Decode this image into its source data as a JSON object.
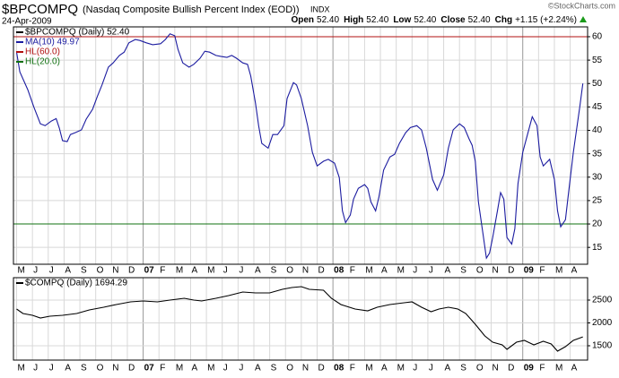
{
  "header": {
    "symbol": "$BPCOMPQ",
    "name": "(Nasdaq Composite Bullish Percent Index (EOD))",
    "exchange": "INDX",
    "date": "24-Apr-2009",
    "copyright": "©StockCharts.com",
    "quote": [
      {
        "label": "Open",
        "value": "52.40"
      },
      {
        "label": "High",
        "value": "52.40"
      },
      {
        "label": "Low",
        "value": "52.40"
      },
      {
        "label": "Close",
        "value": "52.40"
      },
      {
        "label": "Chg",
        "value": "+1.15 (+2.24%)"
      }
    ]
  },
  "chart_data": [
    {
      "type": "line",
      "price_label": "$BPCOMPQ (Daily) 52.40",
      "xlim": [
        -0.2,
        36.1
      ],
      "ylim": [
        11.4,
        62.1
      ],
      "yticks": [
        15,
        20,
        25,
        30,
        35,
        40,
        45,
        50,
        55,
        60
      ],
      "grid": true,
      "xticks": [
        {
          "value": 0,
          "label": "M"
        },
        {
          "value": 1,
          "label": "J"
        },
        {
          "value": 2,
          "label": "J"
        },
        {
          "value": 3,
          "label": "A"
        },
        {
          "value": 4,
          "label": "S"
        },
        {
          "value": 5,
          "label": "O"
        },
        {
          "value": 6,
          "label": "N"
        },
        {
          "value": 7,
          "label": "D"
        },
        {
          "value": 8,
          "label": "07"
        },
        {
          "value": 9,
          "label": "F"
        },
        {
          "value": 10,
          "label": "M"
        },
        {
          "value": 11,
          "label": "A"
        },
        {
          "value": 12,
          "label": "M"
        },
        {
          "value": 13,
          "label": "J"
        },
        {
          "value": 14,
          "label": "J"
        },
        {
          "value": 15,
          "label": "A"
        },
        {
          "value": 16,
          "label": "S"
        },
        {
          "value": 17,
          "label": "O"
        },
        {
          "value": 18,
          "label": "N"
        },
        {
          "value": 19,
          "label": "D"
        },
        {
          "value": 20,
          "label": "08"
        },
        {
          "value": 21,
          "label": "F"
        },
        {
          "value": 22,
          "label": "M"
        },
        {
          "value": 23,
          "label": "A"
        },
        {
          "value": 24,
          "label": "M"
        },
        {
          "value": 25,
          "label": "J"
        },
        {
          "value": 26,
          "label": "J"
        },
        {
          "value": 27,
          "label": "A"
        },
        {
          "value": 28,
          "label": "S"
        },
        {
          "value": 29,
          "label": "O"
        },
        {
          "value": 30,
          "label": "N"
        },
        {
          "value": 31,
          "label": "D"
        },
        {
          "value": 32,
          "label": "09"
        },
        {
          "value": 33,
          "label": "F"
        },
        {
          "value": 34,
          "label": "M"
        },
        {
          "value": 35,
          "label": "A"
        }
      ],
      "hlines": [
        {
          "name": "HL(60.0)",
          "value": 60,
          "color": "#b01010"
        },
        {
          "name": "HL(20.0)",
          "value": 20,
          "color": "#107010"
        }
      ],
      "series": [
        {
          "name": "MA(10) 49.97",
          "color": "#1c1ca0",
          "x": [
            0.0,
            0.2,
            0.7,
            1.1,
            1.5,
            1.8,
            2.2,
            2.5,
            2.7,
            2.9,
            3.2,
            3.4,
            3.7,
            4.1,
            4.4,
            4.8,
            5.1,
            5.4,
            5.8,
            6.1,
            6.5,
            6.8,
            7.1,
            7.5,
            7.8,
            8.2,
            8.6,
            9.1,
            9.4,
            9.7,
            10.0,
            10.2,
            10.5,
            10.9,
            11.2,
            11.6,
            11.9,
            12.2,
            12.6,
            12.9,
            13.3,
            13.6,
            13.9,
            14.3,
            14.6,
            14.8,
            15.1,
            15.3,
            15.5,
            15.9,
            16.2,
            16.5,
            16.9,
            17.1,
            17.5,
            17.7,
            18.0,
            18.4,
            18.7,
            19.0,
            19.4,
            19.7,
            20.1,
            20.4,
            20.6,
            20.8,
            21.1,
            21.3,
            21.6,
            22.0,
            22.2,
            22.4,
            22.7,
            22.9,
            23.2,
            23.6,
            23.9,
            24.2,
            24.6,
            24.9,
            25.3,
            25.6,
            25.9,
            26.3,
            26.6,
            27.0,
            27.3,
            27.6,
            28.0,
            28.3,
            28.6,
            28.8,
            29.0,
            29.2,
            29.5,
            29.7,
            29.9,
            30.1,
            30.4,
            30.6,
            30.8,
            31.0,
            31.3,
            31.5,
            31.7,
            32.0,
            32.3,
            32.6,
            32.9,
            33.1,
            33.3,
            33.7,
            34.0,
            34.2,
            34.4,
            34.7,
            34.9,
            35.2,
            35.6,
            35.8
          ],
          "values": [
            56.7,
            52.5,
            48.7,
            44.9,
            41.4,
            41.0,
            42.0,
            42.5,
            40.5,
            37.8,
            37.6,
            39.1,
            39.5,
            40.1,
            42.4,
            44.5,
            47.2,
            49.7,
            53.5,
            54.4,
            56.0,
            56.7,
            58.7,
            59.4,
            59.2,
            58.7,
            58.3,
            58.5,
            59.4,
            60.6,
            60.2,
            57.3,
            54.4,
            53.5,
            54.1,
            55.4,
            56.9,
            56.7,
            56.0,
            55.8,
            55.6,
            56.0,
            55.4,
            54.4,
            54.1,
            51.6,
            45.8,
            41.0,
            37.2,
            36.2,
            39.1,
            39.1,
            41.0,
            46.8,
            50.2,
            49.7,
            46.8,
            41.0,
            35.3,
            32.4,
            33.4,
            33.8,
            33.0,
            29.9,
            22.8,
            20.3,
            21.9,
            25.3,
            27.6,
            28.4,
            27.6,
            24.7,
            22.8,
            25.7,
            31.5,
            34.3,
            34.9,
            37.2,
            39.5,
            40.6,
            41.0,
            40.1,
            36.2,
            29.5,
            27.2,
            30.5,
            36.2,
            40.1,
            41.4,
            40.6,
            38.2,
            36.8,
            33.4,
            24.7,
            17.6,
            12.7,
            13.8,
            17.1,
            22.8,
            26.7,
            25.3,
            17.1,
            15.7,
            19.0,
            28.6,
            35.3,
            39.1,
            42.9,
            41.0,
            34.3,
            32.4,
            33.8,
            29.5,
            22.8,
            19.4,
            20.9,
            26.7,
            35.3,
            44.9,
            50.0
          ]
        }
      ]
    },
    {
      "type": "line",
      "xlim": [
        -0.2,
        36.1
      ],
      "ylim": [
        1186,
        2990
      ],
      "yticks": [
        1500,
        2000,
        2500
      ],
      "grid": true,
      "xticks": [
        {
          "value": 0,
          "label": "M"
        },
        {
          "value": 1,
          "label": "J"
        },
        {
          "value": 2,
          "label": "J"
        },
        {
          "value": 3,
          "label": "A"
        },
        {
          "value": 4,
          "label": "S"
        },
        {
          "value": 5,
          "label": "O"
        },
        {
          "value": 6,
          "label": "N"
        },
        {
          "value": 7,
          "label": "D"
        },
        {
          "value": 8,
          "label": "07"
        },
        {
          "value": 9,
          "label": "F"
        },
        {
          "value": 10,
          "label": "M"
        },
        {
          "value": 11,
          "label": "A"
        },
        {
          "value": 12,
          "label": "M"
        },
        {
          "value": 13,
          "label": "J"
        },
        {
          "value": 14,
          "label": "J"
        },
        {
          "value": 15,
          "label": "A"
        },
        {
          "value": 16,
          "label": "S"
        },
        {
          "value": 17,
          "label": "O"
        },
        {
          "value": 18,
          "label": "N"
        },
        {
          "value": 19,
          "label": "D"
        },
        {
          "value": 20,
          "label": "08"
        },
        {
          "value": 21,
          "label": "F"
        },
        {
          "value": 22,
          "label": "M"
        },
        {
          "value": 23,
          "label": "A"
        },
        {
          "value": 24,
          "label": "M"
        },
        {
          "value": 25,
          "label": "J"
        },
        {
          "value": 26,
          "label": "J"
        },
        {
          "value": 27,
          "label": "A"
        },
        {
          "value": 28,
          "label": "S"
        },
        {
          "value": 29,
          "label": "O"
        },
        {
          "value": 30,
          "label": "N"
        },
        {
          "value": 31,
          "label": "D"
        },
        {
          "value": 32,
          "label": "09"
        },
        {
          "value": 33,
          "label": "F"
        },
        {
          "value": 34,
          "label": "M"
        },
        {
          "value": 35,
          "label": "A"
        }
      ],
      "series": [
        {
          "name": "$COMPQ (Daily) 1694.29",
          "color": "#000000",
          "x": [
            0.0,
            0.4,
            1.0,
            1.5,
            2.1,
            2.9,
            3.8,
            4.6,
            5.5,
            6.3,
            7.2,
            8.0,
            8.9,
            9.7,
            10.6,
            11.2,
            11.7,
            12.6,
            13.4,
            14.3,
            15.1,
            16.0,
            16.8,
            17.4,
            18.0,
            18.5,
            19.4,
            19.9,
            20.5,
            21.4,
            22.2,
            22.8,
            23.6,
            24.5,
            25.0,
            25.6,
            26.2,
            26.7,
            27.3,
            27.9,
            28.4,
            29.0,
            29.6,
            30.1,
            30.7,
            31.0,
            31.6,
            32.1,
            32.7,
            33.3,
            33.8,
            34.2,
            34.7,
            35.2,
            35.8
          ],
          "values": [
            2304,
            2206,
            2167,
            2108,
            2147,
            2167,
            2206,
            2284,
            2343,
            2402,
            2461,
            2480,
            2461,
            2500,
            2539,
            2500,
            2480,
            2539,
            2598,
            2676,
            2657,
            2657,
            2735,
            2774,
            2794,
            2735,
            2716,
            2539,
            2402,
            2304,
            2265,
            2343,
            2402,
            2441,
            2461,
            2343,
            2245,
            2304,
            2343,
            2304,
            2206,
            1971,
            1716,
            1578,
            1520,
            1422,
            1578,
            1618,
            1520,
            1598,
            1539,
            1382,
            1480,
            1618,
            1694
          ]
        }
      ]
    }
  ]
}
